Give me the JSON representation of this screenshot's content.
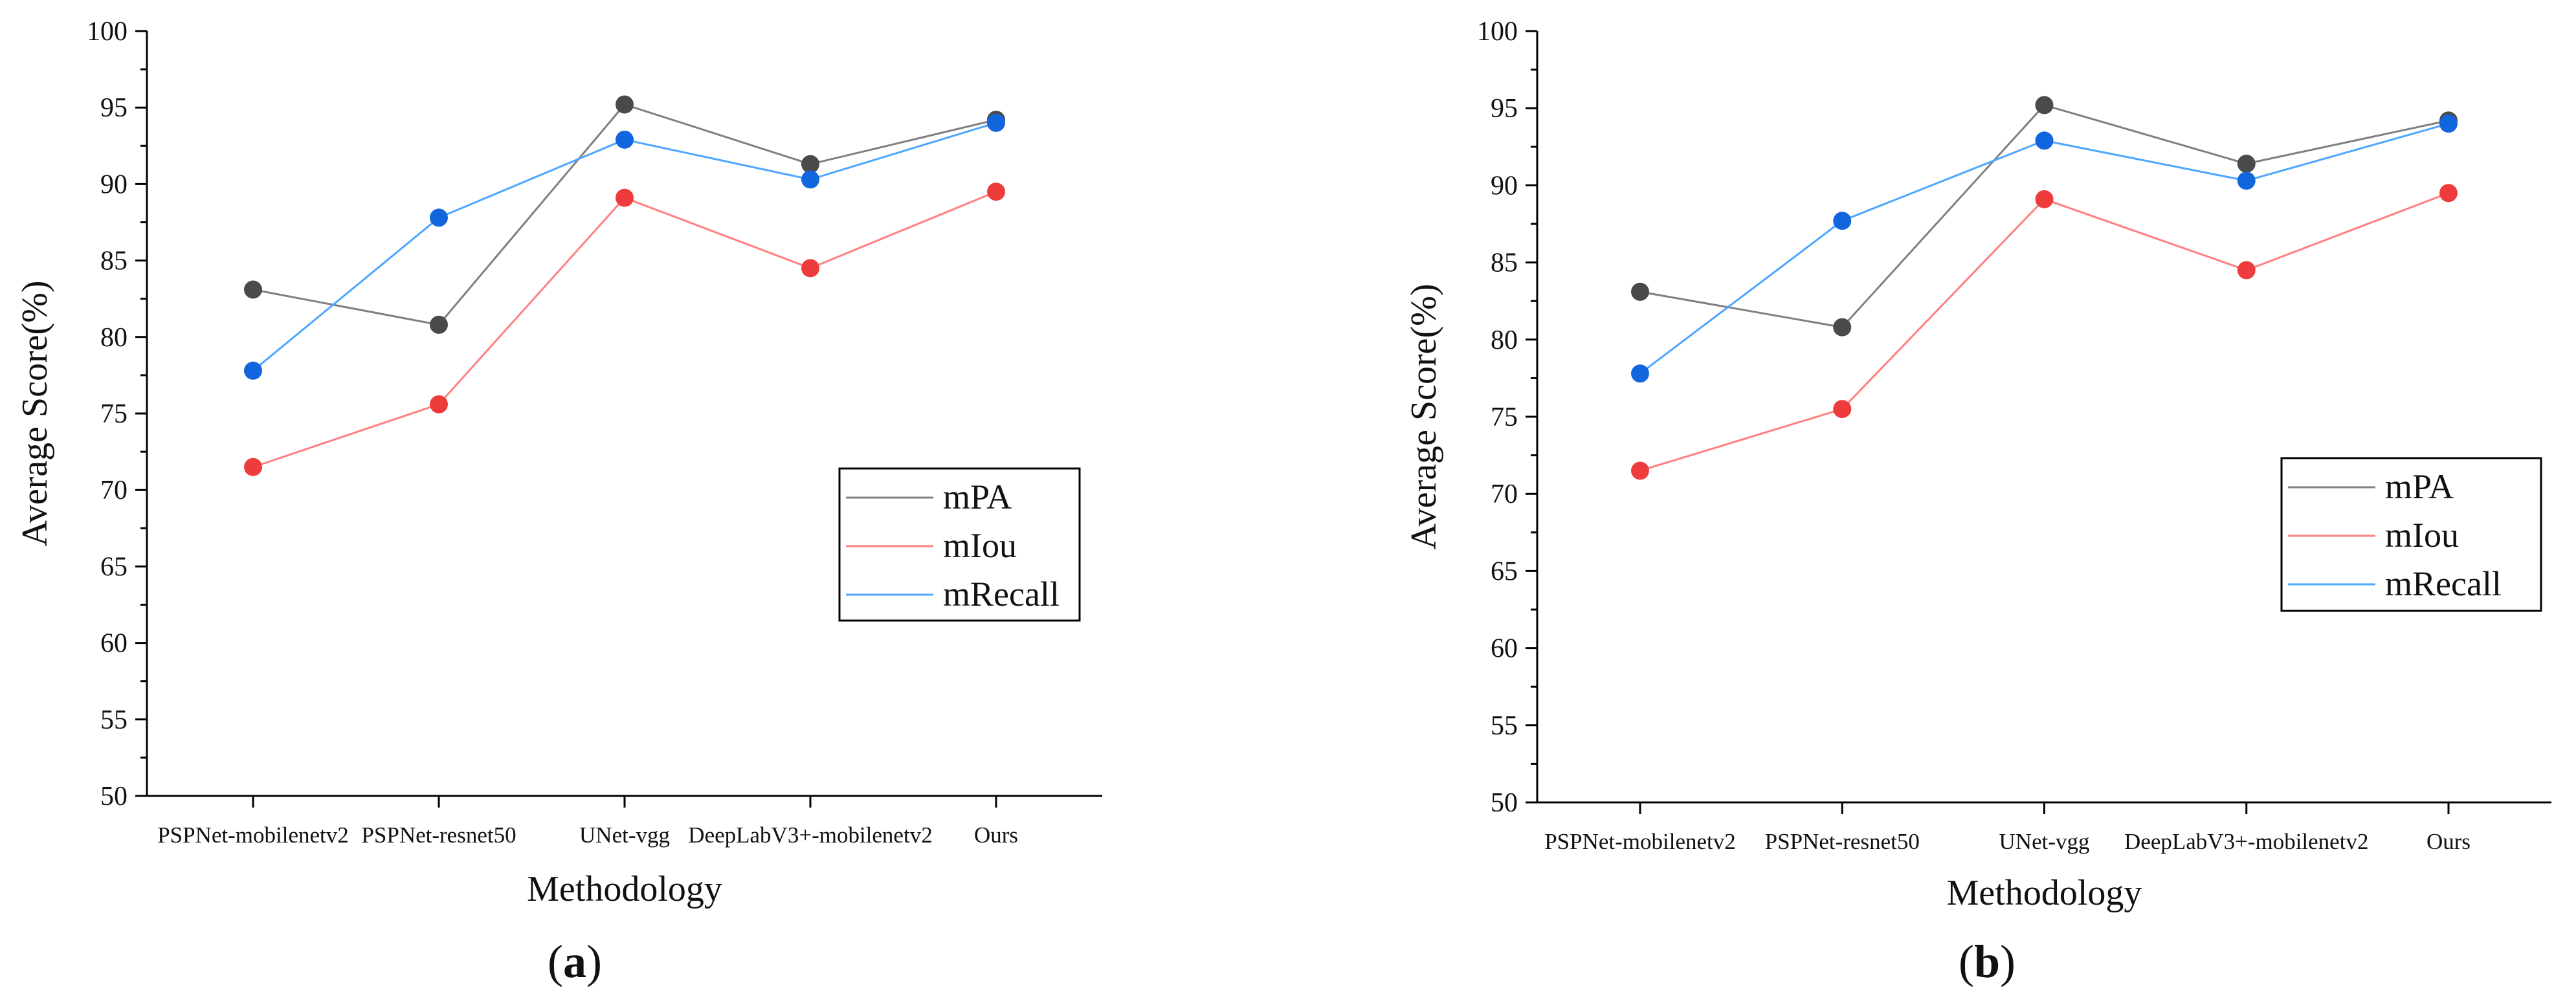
{
  "chart_data": [
    {
      "type": "line",
      "panel_label": "a",
      "categories": [
        "PSPNet-mobilenetv2",
        "PSPNet-resnet50",
        "UNet-vgg",
        "DeepLabV3+-mobilenetv2",
        "Ours"
      ],
      "series": [
        {
          "name": "mPA",
          "values": [
            83.1,
            80.8,
            95.2,
            91.3,
            94.2
          ],
          "color": "#808080",
          "marker_color": "#4a4a4a"
        },
        {
          "name": "mIou",
          "values": [
            71.5,
            75.6,
            89.1,
            84.5,
            89.5
          ],
          "color": "#ff8080",
          "marker_color": "#ee3b3b"
        },
        {
          "name": "mRecall",
          "values": [
            77.8,
            87.8,
            92.9,
            90.3,
            94.0
          ],
          "color": "#4da6ff",
          "marker_color": "#1166dd"
        }
      ],
      "xlabel": "Methodology",
      "ylabel": "Average Score(%)",
      "ylim": [
        50,
        100
      ],
      "yticks": [
        "50",
        "55",
        "60",
        "65",
        "70",
        "75",
        "80",
        "85",
        "90",
        "95",
        "100"
      ],
      "legend": "right"
    },
    {
      "type": "line",
      "panel_label": "b",
      "categories": [
        "PSPNet-mobilenetv2",
        "PSPNet-resnet50",
        "UNet-vgg",
        "DeepLabV3+-mobilenetv2",
        "Ours"
      ],
      "series": [
        {
          "name": "mPA",
          "values": [
            83.1,
            80.8,
            95.2,
            91.4,
            94.2
          ],
          "color": "#808080",
          "marker_color": "#4a4a4a"
        },
        {
          "name": "mIou",
          "values": [
            71.5,
            75.5,
            89.1,
            84.5,
            89.5
          ],
          "color": "#ff8080",
          "marker_color": "#ee3b3b"
        },
        {
          "name": "mRecall",
          "values": [
            77.8,
            87.7,
            92.9,
            90.3,
            94.0
          ],
          "color": "#4da6ff",
          "marker_color": "#1166dd"
        }
      ],
      "xlabel": "Methodology",
      "ylabel": "Average Score(%)",
      "ylim": [
        50,
        100
      ],
      "yticks": [
        "50",
        "55",
        "60",
        "65",
        "70",
        "75",
        "80",
        "85",
        "90",
        "95",
        "100"
      ],
      "legend": "upper-right"
    }
  ]
}
